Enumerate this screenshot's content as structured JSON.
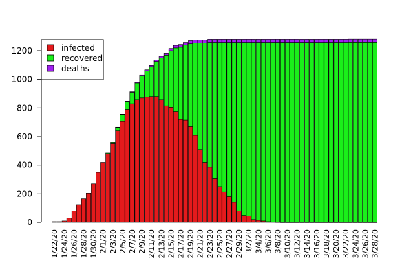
{
  "chart_data": {
    "type": "bar",
    "stacked": true,
    "title": "",
    "xlabel": "",
    "ylabel": "",
    "ylim": [
      0,
      1300
    ],
    "yticks": [
      0,
      200,
      400,
      600,
      800,
      1000,
      1200
    ],
    "grid": false,
    "legend_position": "top-left",
    "categories": [
      "1/22/20",
      "1/23/20",
      "1/24/20",
      "1/25/20",
      "1/26/20",
      "1/27/20",
      "1/28/20",
      "1/29/20",
      "1/30/20",
      "1/31/20",
      "2/1/20",
      "2/2/20",
      "2/3/20",
      "2/4/20",
      "2/5/20",
      "2/6/20",
      "2/7/20",
      "2/8/20",
      "2/9/20",
      "2/10/20",
      "2/11/20",
      "2/12/20",
      "2/13/20",
      "2/14/20",
      "2/15/20",
      "2/16/20",
      "2/17/20",
      "2/18/20",
      "2/19/20",
      "2/20/20",
      "2/21/20",
      "2/22/20",
      "2/23/20",
      "2/24/20",
      "2/25/20",
      "2/26/20",
      "2/27/20",
      "2/28/20",
      "2/29/20",
      "3/1/20",
      "3/2/20",
      "3/3/20",
      "3/4/20",
      "3/5/20",
      "3/6/20",
      "3/7/20",
      "3/8/20",
      "3/9/20",
      "3/10/20",
      "3/11/20",
      "3/12/20",
      "3/13/20",
      "3/14/20",
      "3/15/20",
      "3/16/20",
      "3/17/20",
      "3/18/20",
      "3/19/20",
      "3/20/20",
      "3/21/20",
      "3/22/20",
      "3/23/20",
      "3/24/20",
      "3/25/20",
      "3/26/20",
      "3/27/20",
      "3/28/20"
    ],
    "x_tick_labels": [
      "1/22/20",
      "1/24/20",
      "1/26/20",
      "1/28/20",
      "1/30/20",
      "2/1/20",
      "2/3/20",
      "2/5/20",
      "2/7/20",
      "2/9/20",
      "2/11/20",
      "2/13/20",
      "2/15/20",
      "2/17/20",
      "2/19/20",
      "2/21/20",
      "2/23/20",
      "2/25/20",
      "2/27/20",
      "2/29/20",
      "3/2/20",
      "3/4/20",
      "3/6/20",
      "3/8/20",
      "3/10/20",
      "3/12/20",
      "3/14/20",
      "3/16/20",
      "3/18/20",
      "3/20/20",
      "3/22/20",
      "3/24/20",
      "3/26/20",
      "3/28/20"
    ],
    "series": [
      {
        "name": "infected",
        "color": "#e41a1c",
        "values": [
          5,
          5,
          10,
          30,
          80,
          125,
          165,
          205,
          270,
          350,
          420,
          480,
          550,
          640,
          705,
          790,
          830,
          860,
          870,
          875,
          880,
          880,
          860,
          815,
          805,
          775,
          720,
          715,
          670,
          610,
          510,
          420,
          385,
          305,
          250,
          215,
          180,
          140,
          80,
          50,
          45,
          20,
          15,
          10,
          5,
          3,
          2,
          1,
          1,
          1,
          1,
          1,
          1,
          1,
          1,
          1,
          1,
          1,
          1,
          1,
          1,
          1,
          1,
          1,
          1,
          1,
          1
        ]
      },
      {
        "name": "recovered",
        "color": "#1aef1a",
        "values": [
          0,
          0,
          0,
          0,
          0,
          0,
          0,
          0,
          0,
          0,
          0,
          5,
          10,
          25,
          50,
          55,
          80,
          115,
          155,
          185,
          210,
          245,
          290,
          355,
          395,
          445,
          505,
          525,
          580,
          645,
          745,
          835,
          875,
          955,
          1010,
          1045,
          1080,
          1120,
          1180,
          1210,
          1215,
          1240,
          1245,
          1250,
          1255,
          1257,
          1258,
          1259,
          1259,
          1259,
          1259,
          1259,
          1259,
          1259,
          1259,
          1259,
          1259,
          1259,
          1259,
          1259,
          1259,
          1260,
          1260,
          1260,
          1260,
          1260,
          1260
        ]
      },
      {
        "name": "deaths",
        "color": "#a020f0",
        "values": [
          0,
          0,
          0,
          0,
          0,
          0,
          0,
          0,
          0,
          0,
          0,
          0,
          0,
          1,
          2,
          3,
          4,
          5,
          6,
          7,
          8,
          10,
          12,
          14,
          16,
          18,
          20,
          20,
          20,
          20,
          20,
          20,
          20,
          20,
          20,
          20,
          20,
          20,
          20,
          20,
          20,
          20,
          20,
          20,
          20,
          20,
          20,
          20,
          20,
          20,
          20,
          20,
          20,
          20,
          20,
          20,
          20,
          20,
          20,
          20,
          20,
          20,
          20,
          20,
          20,
          20,
          20
        ]
      }
    ]
  }
}
